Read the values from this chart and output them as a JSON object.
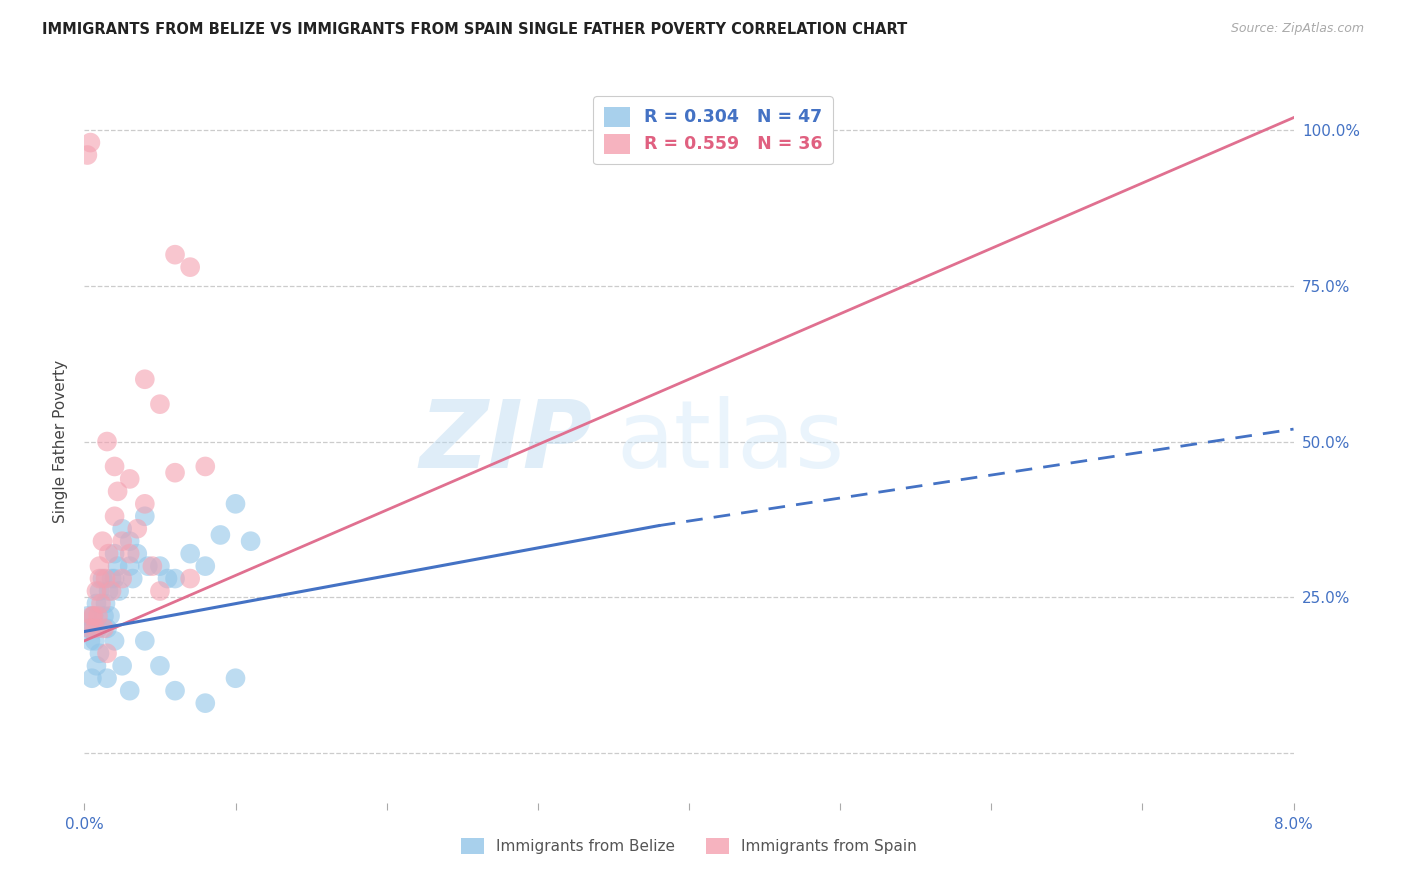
{
  "title": "IMMIGRANTS FROM BELIZE VS IMMIGRANTS FROM SPAIN SINGLE FATHER POVERTY CORRELATION CHART",
  "source": "Source: ZipAtlas.com",
  "ylabel": "Single Father Poverty",
  "ytick_labels": [
    "",
    "25.0%",
    "50.0%",
    "75.0%",
    "100.0%"
  ],
  "ytick_values": [
    0,
    0.25,
    0.5,
    0.75,
    1.0
  ],
  "xlim": [
    0,
    0.08
  ],
  "ylim": [
    -0.08,
    1.08
  ],
  "legend_belize": "R = 0.304   N = 47",
  "legend_spain": "R = 0.559   N = 36",
  "belize_color": "#92c5e8",
  "spain_color": "#f4a0b0",
  "belize_line_color": "#4472c4",
  "spain_line_color": "#e07090",
  "watermark_zip": "ZIP",
  "watermark_atlas": "atlas",
  "belize_x": [
    0.0002,
    0.0003,
    0.0004,
    0.0005,
    0.0006,
    0.0007,
    0.0008,
    0.0009,
    0.001,
    0.0012,
    0.0013,
    0.0014,
    0.0015,
    0.0016,
    0.0017,
    0.0018,
    0.002,
    0.002,
    0.0022,
    0.0023,
    0.0025,
    0.003,
    0.003,
    0.0032,
    0.0035,
    0.004,
    0.0042,
    0.005,
    0.0055,
    0.006,
    0.007,
    0.008,
    0.009,
    0.01,
    0.011,
    0.0005,
    0.0008,
    0.001,
    0.0015,
    0.002,
    0.0025,
    0.003,
    0.004,
    0.005,
    0.006,
    0.008,
    0.01
  ],
  "belize_y": [
    0.22,
    0.2,
    0.18,
    0.2,
    0.22,
    0.18,
    0.24,
    0.2,
    0.26,
    0.28,
    0.22,
    0.24,
    0.2,
    0.26,
    0.22,
    0.28,
    0.32,
    0.28,
    0.3,
    0.26,
    0.36,
    0.34,
    0.3,
    0.28,
    0.32,
    0.38,
    0.3,
    0.3,
    0.28,
    0.28,
    0.32,
    0.3,
    0.35,
    0.4,
    0.34,
    0.12,
    0.14,
    0.16,
    0.12,
    0.18,
    0.14,
    0.1,
    0.18,
    0.14,
    0.1,
    0.08,
    0.12
  ],
  "spain_x": [
    0.0002,
    0.0004,
    0.0006,
    0.0008,
    0.001,
    0.0012,
    0.0014,
    0.0016,
    0.0018,
    0.002,
    0.0022,
    0.0025,
    0.003,
    0.0035,
    0.004,
    0.0045,
    0.005,
    0.006,
    0.007,
    0.008,
    0.0005,
    0.001,
    0.0015,
    0.002,
    0.0025,
    0.003,
    0.004,
    0.005,
    0.006,
    0.007,
    0.00035,
    0.0007,
    0.0009,
    0.0011,
    0.0013,
    0.0015
  ],
  "spain_y": [
    0.96,
    0.98,
    0.22,
    0.26,
    0.3,
    0.34,
    0.28,
    0.32,
    0.26,
    0.38,
    0.42,
    0.34,
    0.44,
    0.36,
    0.6,
    0.3,
    0.56,
    0.45,
    0.78,
    0.46,
    0.22,
    0.28,
    0.5,
    0.46,
    0.28,
    0.32,
    0.4,
    0.26,
    0.8,
    0.28,
    0.2,
    0.2,
    0.22,
    0.24,
    0.2,
    0.16
  ]
}
